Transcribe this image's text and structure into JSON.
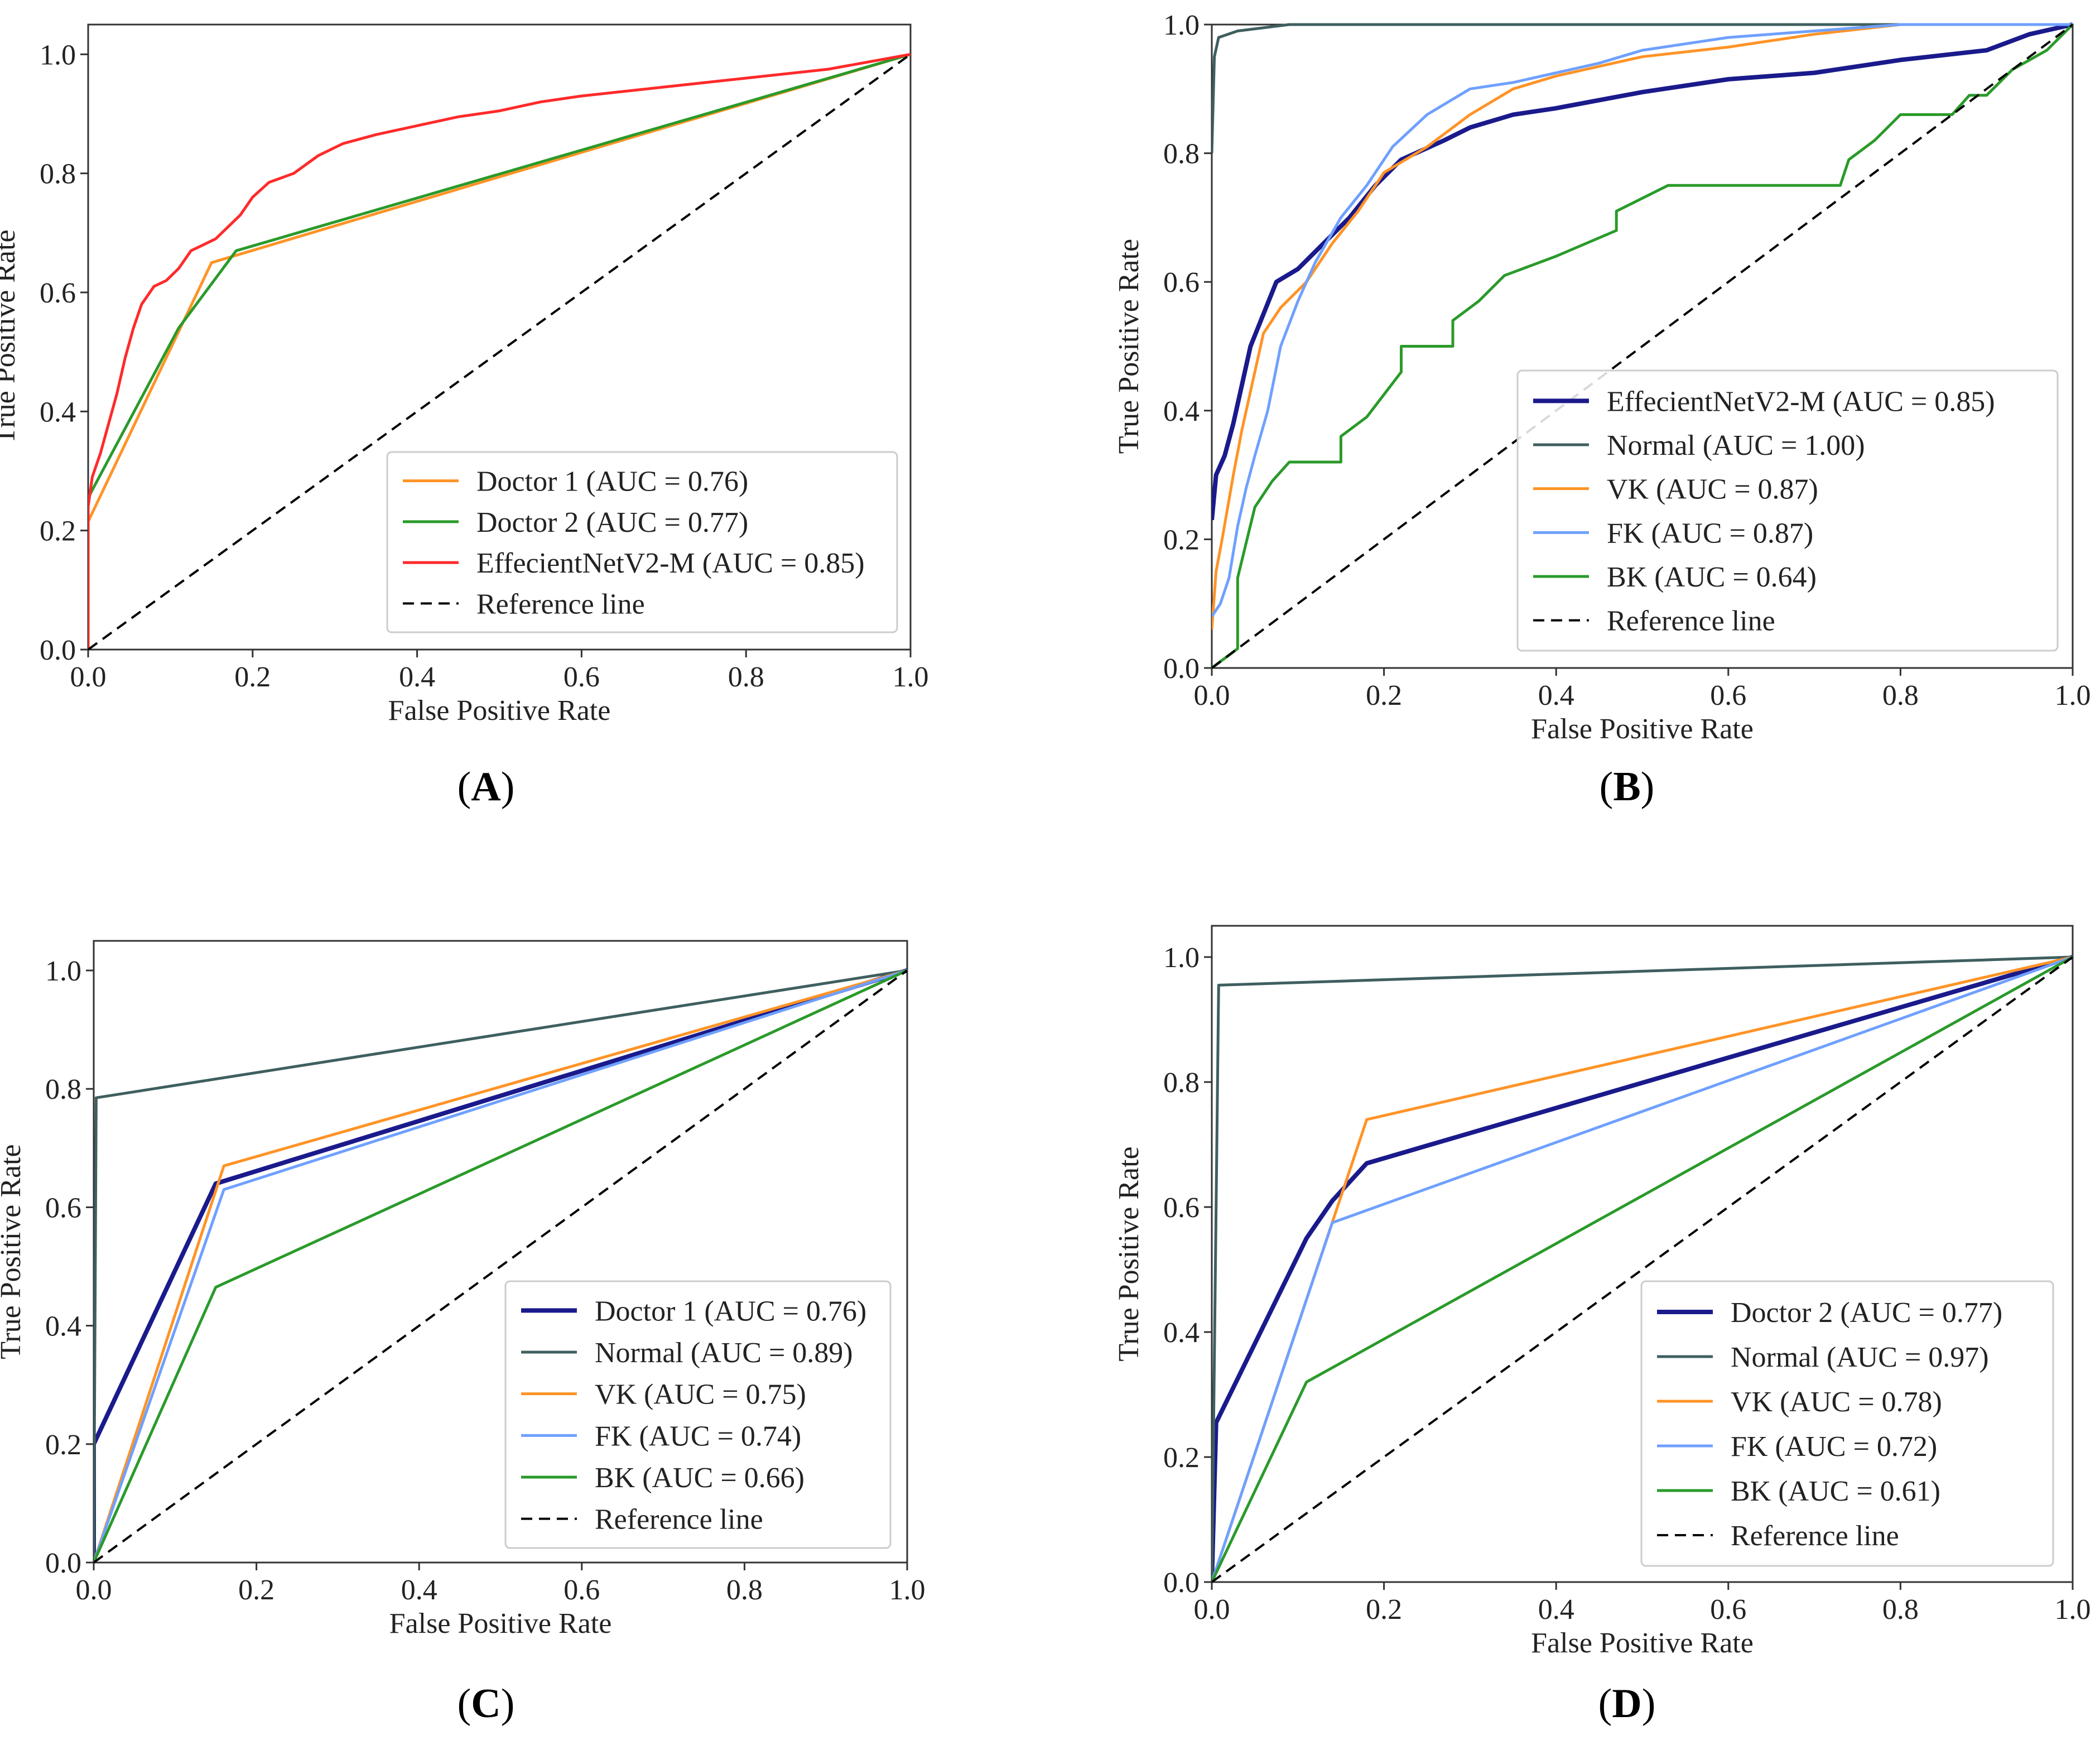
{
  "chart_data": [
    {
      "type": "line",
      "panel": "A",
      "title": "",
      "caption": "A",
      "xlabel": "False Positive Rate",
      "ylabel": "True Positive Rate",
      "xlim": [
        0,
        1.0
      ],
      "ylim": [
        0,
        1.05
      ],
      "xticks": [
        "0.0",
        "0.2",
        "0.4",
        "0.6",
        "0.8",
        "1.0"
      ],
      "yticks": [
        "0.0",
        "0.2",
        "0.4",
        "0.6",
        "0.8",
        "1.0"
      ],
      "legend_position": "lower-right",
      "series": [
        {
          "name": "Doctor 1 (AUC = 0.76)",
          "color": "#ff9326",
          "width": "normal",
          "points": [
            [
              0,
              0
            ],
            [
              0,
              0.215
            ],
            [
              0.15,
              0.65
            ],
            [
              1,
              1
            ]
          ]
        },
        {
          "name": "Doctor 2 (AUC = 0.77)",
          "color": "#2a9a2a",
          "width": "normal",
          "points": [
            [
              0,
              0
            ],
            [
              0,
              0.255
            ],
            [
              0.11,
              0.54
            ],
            [
              0.18,
              0.67
            ],
            [
              1,
              1
            ]
          ]
        },
        {
          "name": "EffecientNetV2-M (AUC = 0.85)",
          "color": "#ff2a2a",
          "width": "normal",
          "points": [
            [
              0,
              0
            ],
            [
              0,
              0.24
            ],
            [
              0.005,
              0.29
            ],
            [
              0.015,
              0.33
            ],
            [
              0.025,
              0.38
            ],
            [
              0.035,
              0.43
            ],
            [
              0.045,
              0.49
            ],
            [
              0.055,
              0.54
            ],
            [
              0.065,
              0.58
            ],
            [
              0.08,
              0.61
            ],
            [
              0.095,
              0.62
            ],
            [
              0.11,
              0.64
            ],
            [
              0.125,
              0.67
            ],
            [
              0.14,
              0.68
            ],
            [
              0.155,
              0.69
            ],
            [
              0.17,
              0.71
            ],
            [
              0.185,
              0.73
            ],
            [
              0.2,
              0.76
            ],
            [
              0.22,
              0.785
            ],
            [
              0.25,
              0.8
            ],
            [
              0.28,
              0.83
            ],
            [
              0.31,
              0.85
            ],
            [
              0.35,
              0.865
            ],
            [
              0.4,
              0.88
            ],
            [
              0.45,
              0.895
            ],
            [
              0.5,
              0.905
            ],
            [
              0.55,
              0.92
            ],
            [
              0.6,
              0.93
            ],
            [
              0.7,
              0.945
            ],
            [
              0.8,
              0.96
            ],
            [
              0.9,
              0.975
            ],
            [
              1,
              1
            ]
          ]
        },
        {
          "name": "Reference line",
          "color": "#000000",
          "dash": true,
          "points": [
            [
              0,
              0
            ],
            [
              1,
              1
            ]
          ]
        }
      ]
    },
    {
      "type": "line",
      "panel": "B",
      "title": "",
      "caption": "B",
      "xlabel": "False Positive Rate",
      "ylabel": "True Positive Rate",
      "xlim": [
        0,
        1.0
      ],
      "ylim": [
        0,
        1.0
      ],
      "xticks": [
        "0.0",
        "0.2",
        "0.4",
        "0.6",
        "0.8",
        "1.0"
      ],
      "yticks": [
        "0.0",
        "0.2",
        "0.4",
        "0.6",
        "0.8",
        "1.0"
      ],
      "legend_position": "lower-right",
      "series": [
        {
          "name": "EffecientNetV2-M (AUC = 0.85)",
          "color": "#1a1a8c",
          "width": "thick",
          "points": [
            [
              0,
              0.23
            ],
            [
              0.005,
              0.3
            ],
            [
              0.015,
              0.33
            ],
            [
              0.025,
              0.38
            ],
            [
              0.035,
              0.44
            ],
            [
              0.045,
              0.5
            ],
            [
              0.06,
              0.55
            ],
            [
              0.075,
              0.6
            ],
            [
              0.1,
              0.62
            ],
            [
              0.13,
              0.66
            ],
            [
              0.16,
              0.7
            ],
            [
              0.19,
              0.75
            ],
            [
              0.22,
              0.79
            ],
            [
              0.27,
              0.82
            ],
            [
              0.3,
              0.84
            ],
            [
              0.35,
              0.86
            ],
            [
              0.4,
              0.87
            ],
            [
              0.5,
              0.895
            ],
            [
              0.6,
              0.915
            ],
            [
              0.7,
              0.925
            ],
            [
              0.8,
              0.945
            ],
            [
              0.9,
              0.96
            ],
            [
              0.95,
              0.985
            ],
            [
              1,
              1
            ]
          ]
        },
        {
          "name": "Normal (AUC = 1.00)",
          "color": "#3f5f5f",
          "width": "normal",
          "points": [
            [
              0,
              0.8
            ],
            [
              0.003,
              0.95
            ],
            [
              0.008,
              0.98
            ],
            [
              0.03,
              0.99
            ],
            [
              0.09,
              1.0
            ],
            [
              1,
              1
            ]
          ]
        },
        {
          "name": "VK (AUC = 0.87)",
          "color": "#ff9326",
          "width": "normal",
          "points": [
            [
              0,
              0.06
            ],
            [
              0.005,
              0.15
            ],
            [
              0.012,
              0.2
            ],
            [
              0.025,
              0.3
            ],
            [
              0.035,
              0.37
            ],
            [
              0.045,
              0.43
            ],
            [
              0.06,
              0.52
            ],
            [
              0.08,
              0.56
            ],
            [
              0.11,
              0.6
            ],
            [
              0.14,
              0.66
            ],
            [
              0.17,
              0.71
            ],
            [
              0.2,
              0.77
            ],
            [
              0.25,
              0.81
            ],
            [
              0.3,
              0.86
            ],
            [
              0.35,
              0.9
            ],
            [
              0.4,
              0.92
            ],
            [
              0.45,
              0.935
            ],
            [
              0.5,
              0.95
            ],
            [
              0.6,
              0.965
            ],
            [
              0.7,
              0.985
            ],
            [
              0.8,
              1.0
            ],
            [
              1,
              1
            ]
          ]
        },
        {
          "name": "FK (AUC = 0.87)",
          "color": "#6fa0ff",
          "width": "normal",
          "points": [
            [
              0,
              0.08
            ],
            [
              0.01,
              0.1
            ],
            [
              0.02,
              0.14
            ],
            [
              0.03,
              0.22
            ],
            [
              0.04,
              0.28
            ],
            [
              0.05,
              0.33
            ],
            [
              0.065,
              0.4
            ],
            [
              0.08,
              0.5
            ],
            [
              0.1,
              0.57
            ],
            [
              0.12,
              0.63
            ],
            [
              0.15,
              0.7
            ],
            [
              0.18,
              0.75
            ],
            [
              0.21,
              0.81
            ],
            [
              0.25,
              0.86
            ],
            [
              0.3,
              0.9
            ],
            [
              0.35,
              0.91
            ],
            [
              0.4,
              0.925
            ],
            [
              0.45,
              0.94
            ],
            [
              0.5,
              0.96
            ],
            [
              0.6,
              0.98
            ],
            [
              0.7,
              0.99
            ],
            [
              0.8,
              1.0
            ],
            [
              1,
              1
            ]
          ]
        },
        {
          "name": "BK (AUC = 0.64)",
          "color": "#2a9a2a",
          "width": "normal",
          "points": [
            [
              0,
              0
            ],
            [
              0.03,
              0.03
            ],
            [
              0.03,
              0.14
            ],
            [
              0.05,
              0.25
            ],
            [
              0.07,
              0.29
            ],
            [
              0.09,
              0.32
            ],
            [
              0.15,
              0.32
            ],
            [
              0.15,
              0.36
            ],
            [
              0.18,
              0.39
            ],
            [
              0.22,
              0.46
            ],
            [
              0.22,
              0.5
            ],
            [
              0.28,
              0.5
            ],
            [
              0.28,
              0.54
            ],
            [
              0.31,
              0.57
            ],
            [
              0.34,
              0.61
            ],
            [
              0.4,
              0.64
            ],
            [
              0.47,
              0.68
            ],
            [
              0.47,
              0.71
            ],
            [
              0.53,
              0.75
            ],
            [
              0.73,
              0.75
            ],
            [
              0.74,
              0.79
            ],
            [
              0.77,
              0.82
            ],
            [
              0.8,
              0.86
            ],
            [
              0.86,
              0.86
            ],
            [
              0.88,
              0.89
            ],
            [
              0.9,
              0.89
            ],
            [
              0.93,
              0.93
            ],
            [
              0.97,
              0.96
            ],
            [
              1,
              1
            ]
          ]
        },
        {
          "name": "Reference line",
          "color": "#000000",
          "dash": true,
          "points": [
            [
              0,
              0
            ],
            [
              1,
              1
            ]
          ]
        }
      ]
    },
    {
      "type": "line",
      "panel": "C",
      "title": "",
      "caption": "C",
      "xlabel": "False Positive Rate",
      "ylabel": "True Positive Rate",
      "xlim": [
        0,
        1.0
      ],
      "ylim": [
        0,
        1.05
      ],
      "xticks": [
        "0.0",
        "0.2",
        "0.4",
        "0.6",
        "0.8",
        "1.0"
      ],
      "yticks": [
        "0.0",
        "0.2",
        "0.4",
        "0.6",
        "0.8",
        "1.0"
      ],
      "legend_position": "lower-right",
      "series": [
        {
          "name": "Doctor 1 (AUC = 0.76)",
          "color": "#1a1a8c",
          "width": "thick",
          "points": [
            [
              0,
              0
            ],
            [
              0,
              0.2
            ],
            [
              0.15,
              0.64
            ],
            [
              1,
              1
            ]
          ]
        },
        {
          "name": "Normal (AUC = 0.89)",
          "color": "#3f5f5f",
          "width": "normal",
          "points": [
            [
              0,
              0
            ],
            [
              0.003,
              0.785
            ],
            [
              1,
              1
            ]
          ]
        },
        {
          "name": "VK (AUC = 0.75)",
          "color": "#ff9326",
          "width": "normal",
          "points": [
            [
              0,
              0
            ],
            [
              0.16,
              0.67
            ],
            [
              1,
              1
            ]
          ]
        },
        {
          "name": "FK (AUC = 0.74)",
          "color": "#6fa0ff",
          "width": "normal",
          "points": [
            [
              0,
              0
            ],
            [
              0.16,
              0.63
            ],
            [
              1,
              1
            ]
          ]
        },
        {
          "name": "BK (AUC = 0.66)",
          "color": "#2a9a2a",
          "width": "normal",
          "points": [
            [
              0,
              0
            ],
            [
              0.15,
              0.465
            ],
            [
              1,
              1
            ]
          ]
        },
        {
          "name": "Reference line",
          "color": "#000000",
          "dash": true,
          "points": [
            [
              0,
              0
            ],
            [
              1,
              1
            ]
          ]
        }
      ]
    },
    {
      "type": "line",
      "panel": "D",
      "title": "",
      "caption": "D",
      "xlabel": "False Positive Rate",
      "ylabel": "True Positive Rate",
      "xlim": [
        0,
        1.0
      ],
      "ylim": [
        0,
        1.05
      ],
      "xticks": [
        "0.0",
        "0.2",
        "0.4",
        "0.6",
        "0.8",
        "1.0"
      ],
      "yticks": [
        "0.0",
        "0.2",
        "0.4",
        "0.6",
        "0.8",
        "1.0"
      ],
      "legend_position": "lower-right",
      "series": [
        {
          "name": "Doctor 2 (AUC = 0.77)",
          "color": "#1a1a8c",
          "width": "thick",
          "points": [
            [
              0,
              0
            ],
            [
              0.005,
              0.255
            ],
            [
              0.11,
              0.55
            ],
            [
              0.14,
              0.61
            ],
            [
              0.18,
              0.67
            ],
            [
              1,
              1
            ]
          ]
        },
        {
          "name": "Normal (AUC = 0.97)",
          "color": "#3f5f5f",
          "width": "normal",
          "points": [
            [
              0,
              0
            ],
            [
              0.008,
              0.955
            ],
            [
              1,
              1
            ]
          ]
        },
        {
          "name": "VK (AUC = 0.78)",
          "color": "#ff9326",
          "width": "normal",
          "points": [
            [
              0,
              0
            ],
            [
              0.18,
              0.74
            ],
            [
              1,
              1
            ]
          ]
        },
        {
          "name": "FK (AUC = 0.72)",
          "color": "#6fa0ff",
          "width": "normal",
          "points": [
            [
              0,
              0
            ],
            [
              0.14,
              0.575
            ],
            [
              1,
              1
            ]
          ]
        },
        {
          "name": "BK (AUC = 0.61)",
          "color": "#2a9a2a",
          "width": "normal",
          "points": [
            [
              0,
              0
            ],
            [
              0.11,
              0.32
            ],
            [
              1,
              1
            ]
          ]
        },
        {
          "name": "Reference line",
          "color": "#000000",
          "dash": true,
          "points": [
            [
              0,
              0
            ],
            [
              1,
              1
            ]
          ]
        }
      ]
    }
  ]
}
